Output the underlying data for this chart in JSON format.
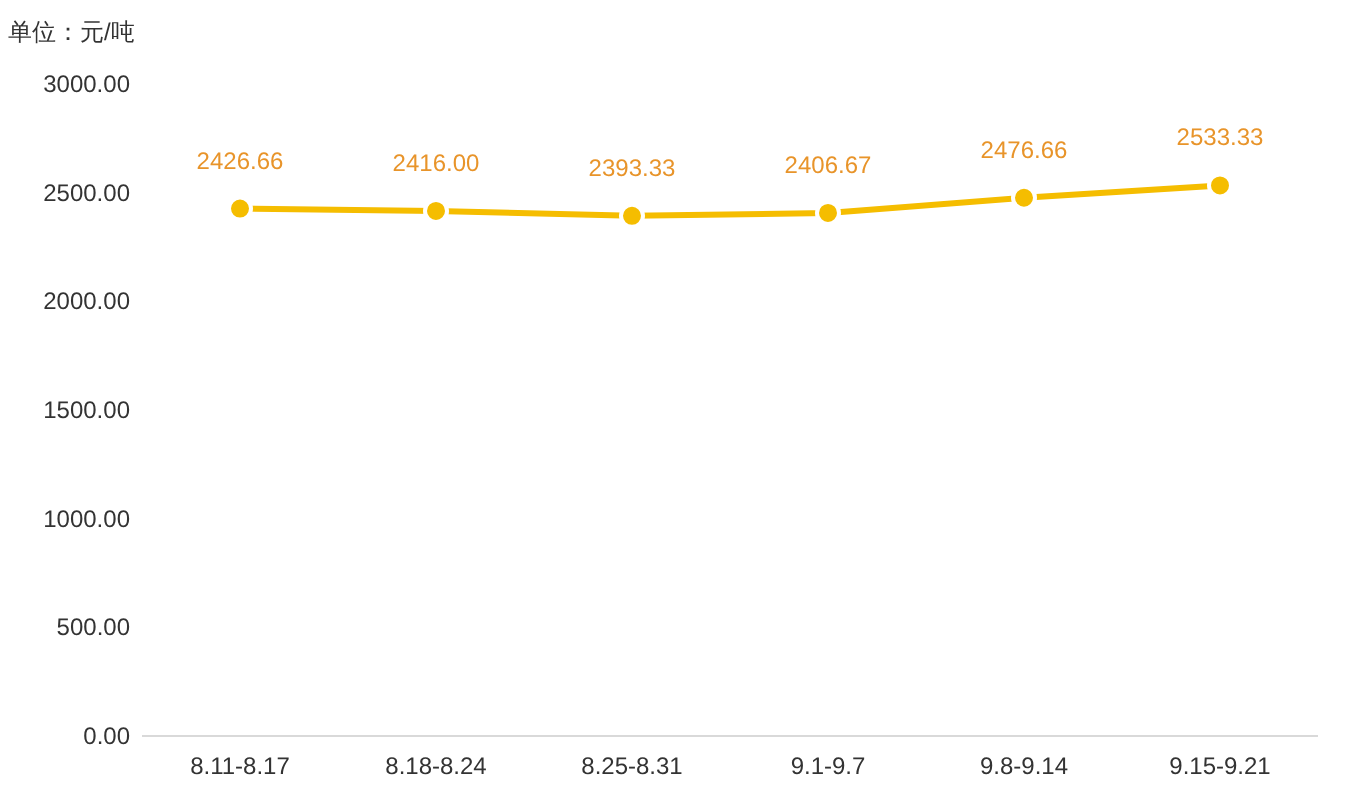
{
  "chart_data": {
    "type": "line",
    "ylabel": "单位：元/吨",
    "categories": [
      "8.11-8.17",
      "8.18-8.24",
      "8.25-8.31",
      "9.1-9.7",
      "9.8-9.14",
      "9.15-9.21"
    ],
    "series": [
      {
        "color": "#f5bd00",
        "values": [
          2426.66,
          2416.0,
          2393.33,
          2406.67,
          2476.66,
          2533.33
        ],
        "value_labels": [
          "2426.66",
          "2416.00",
          "2393.33",
          "2406.67",
          "2476.66",
          "2533.33"
        ]
      }
    ],
    "ylim": [
      0,
      3000
    ],
    "yticks": [
      {
        "value": 0,
        "label": "0.00"
      },
      {
        "value": 500,
        "label": "500.00"
      },
      {
        "value": 1000,
        "label": "1000.00"
      },
      {
        "value": 1500,
        "label": "1500.00"
      },
      {
        "value": 2000,
        "label": "2000.00"
      },
      {
        "value": 2500,
        "label": "2500.00"
      },
      {
        "value": 3000,
        "label": "3000.00"
      }
    ],
    "marker": "circle",
    "line_style": "solid",
    "grid": false
  }
}
